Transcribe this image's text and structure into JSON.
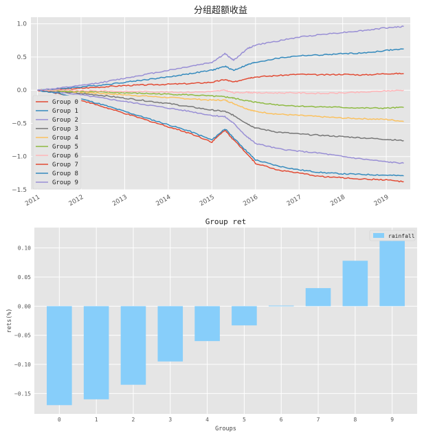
{
  "chart_data": [
    {
      "type": "line",
      "title": "分组超额收益",
      "xlabel": "",
      "ylabel": "",
      "x_ticks": [
        "2011",
        "2012",
        "2013",
        "2014",
        "2015",
        "2016",
        "2017",
        "2018",
        "2019"
      ],
      "x_range": [
        2010.85,
        2019.55
      ],
      "y_ticks": [
        "1.0",
        "0.5",
        "0.0",
        "−0.5",
        "−1.0",
        "−1.5"
      ],
      "ylim": [
        -1.5,
        1.1
      ],
      "grid": true,
      "legend_position": "center-left",
      "series": [
        {
          "name": "Group 0",
          "color": "#E24A33",
          "x": [
            2011.0,
            2011.5,
            2012.0,
            2012.5,
            2013.0,
            2013.5,
            2014.0,
            2014.5,
            2015.0,
            2015.3,
            2015.5,
            2015.8,
            2016.0,
            2016.5,
            2017.0,
            2017.5,
            2018.0,
            2018.5,
            2019.0,
            2019.4
          ],
          "y": [
            0.0,
            0.01,
            0.03,
            0.05,
            0.07,
            0.08,
            0.09,
            0.1,
            0.12,
            0.16,
            0.12,
            0.18,
            0.2,
            0.22,
            0.24,
            0.23,
            0.24,
            0.23,
            0.25,
            0.25
          ]
        },
        {
          "name": "Group 1",
          "color": "#348ABD",
          "x": [
            2011.0,
            2011.5,
            2012.0,
            2012.5,
            2013.0,
            2013.5,
            2014.0,
            2014.5,
            2015.0,
            2015.3,
            2015.5,
            2015.8,
            2016.0,
            2016.5,
            2017.0,
            2017.5,
            2018.0,
            2018.5,
            2019.0,
            2019.4
          ],
          "y": [
            0.0,
            0.02,
            0.05,
            0.08,
            0.12,
            0.16,
            0.2,
            0.25,
            0.3,
            0.36,
            0.3,
            0.38,
            0.42,
            0.48,
            0.52,
            0.53,
            0.55,
            0.56,
            0.6,
            0.62
          ]
        },
        {
          "name": "Group 2",
          "color": "#988ED5",
          "x": [
            2011.0,
            2011.5,
            2012.0,
            2012.5,
            2013.0,
            2013.5,
            2014.0,
            2014.5,
            2015.0,
            2015.3,
            2015.5,
            2015.8,
            2016.0,
            2016.5,
            2017.0,
            2017.5,
            2018.0,
            2018.5,
            2019.0,
            2019.4
          ],
          "y": [
            0.0,
            -0.03,
            -0.07,
            -0.12,
            -0.17,
            -0.22,
            -0.27,
            -0.32,
            -0.38,
            -0.4,
            -0.5,
            -0.7,
            -0.8,
            -0.88,
            -0.92,
            -0.95,
            -1.0,
            -1.04,
            -1.08,
            -1.1
          ]
        },
        {
          "name": "Group 3",
          "color": "#777777",
          "x": [
            2011.0,
            2011.5,
            2012.0,
            2012.5,
            2013.0,
            2013.5,
            2014.0,
            2014.5,
            2015.0,
            2015.3,
            2015.5,
            2015.8,
            2016.0,
            2016.5,
            2017.0,
            2017.5,
            2018.0,
            2018.5,
            2019.0,
            2019.4
          ],
          "y": [
            0.0,
            -0.02,
            -0.05,
            -0.08,
            -0.12,
            -0.16,
            -0.2,
            -0.25,
            -0.3,
            -0.32,
            -0.38,
            -0.5,
            -0.57,
            -0.63,
            -0.66,
            -0.68,
            -0.7,
            -0.72,
            -0.74,
            -0.76
          ]
        },
        {
          "name": "Group 4",
          "color": "#FBC15E",
          "x": [
            2011.0,
            2011.5,
            2012.0,
            2012.5,
            2013.0,
            2013.5,
            2014.0,
            2014.5,
            2015.0,
            2015.3,
            2015.5,
            2015.8,
            2016.0,
            2016.5,
            2017.0,
            2017.5,
            2018.0,
            2018.5,
            2019.0,
            2019.4
          ],
          "y": [
            0.0,
            -0.01,
            -0.03,
            -0.05,
            -0.07,
            -0.09,
            -0.11,
            -0.13,
            -0.15,
            -0.15,
            -0.2,
            -0.28,
            -0.32,
            -0.36,
            -0.38,
            -0.4,
            -0.42,
            -0.43,
            -0.44,
            -0.47
          ]
        },
        {
          "name": "Group 5",
          "color": "#8EBA42",
          "x": [
            2011.0,
            2011.5,
            2012.0,
            2012.5,
            2013.0,
            2013.5,
            2014.0,
            2014.5,
            2015.0,
            2015.3,
            2015.5,
            2015.8,
            2016.0,
            2016.5,
            2017.0,
            2017.5,
            2018.0,
            2018.5,
            2019.0,
            2019.4
          ],
          "y": [
            0.0,
            -0.01,
            -0.02,
            -0.03,
            -0.04,
            -0.05,
            -0.06,
            -0.07,
            -0.09,
            -0.1,
            -0.12,
            -0.16,
            -0.18,
            -0.22,
            -0.24,
            -0.25,
            -0.26,
            -0.27,
            -0.27,
            -0.26
          ]
        },
        {
          "name": "Group 6",
          "color": "#FFB5B8",
          "x": [
            2011.0,
            2011.5,
            2012.0,
            2012.5,
            2013.0,
            2013.5,
            2014.0,
            2014.5,
            2015.0,
            2015.3,
            2015.5,
            2015.8,
            2016.0,
            2016.5,
            2017.0,
            2017.5,
            2018.0,
            2018.5,
            2019.0,
            2019.4
          ],
          "y": [
            0.0,
            0.0,
            -0.01,
            -0.01,
            -0.02,
            -0.02,
            -0.03,
            -0.03,
            -0.02,
            0.0,
            -0.04,
            -0.03,
            -0.04,
            -0.04,
            -0.04,
            -0.05,
            -0.04,
            -0.03,
            -0.01,
            0.0
          ]
        },
        {
          "name": "Group 7",
          "color": "#E24A33",
          "x": [
            2011.0,
            2011.5,
            2012.0,
            2012.5,
            2013.0,
            2013.5,
            2014.0,
            2014.5,
            2015.0,
            2015.3,
            2015.5,
            2015.8,
            2016.0,
            2016.5,
            2017.0,
            2017.5,
            2018.0,
            2018.5,
            2019.0,
            2019.4
          ],
          "y": [
            0.0,
            -0.05,
            -0.15,
            -0.25,
            -0.35,
            -0.45,
            -0.55,
            -0.65,
            -0.78,
            -0.6,
            -0.75,
            -0.95,
            -1.1,
            -1.2,
            -1.25,
            -1.3,
            -1.32,
            -1.34,
            -1.35,
            -1.38
          ]
        },
        {
          "name": "Group 8",
          "color": "#348ABD",
          "x": [
            2011.0,
            2011.5,
            2012.0,
            2012.5,
            2013.0,
            2013.5,
            2014.0,
            2014.5,
            2015.0,
            2015.3,
            2015.5,
            2015.8,
            2016.0,
            2016.5,
            2017.0,
            2017.5,
            2018.0,
            2018.5,
            2019.0,
            2019.4
          ],
          "y": [
            0.0,
            -0.05,
            -0.13,
            -0.22,
            -0.32,
            -0.42,
            -0.52,
            -0.62,
            -0.75,
            -0.58,
            -0.72,
            -0.92,
            -1.05,
            -1.14,
            -1.2,
            -1.24,
            -1.26,
            -1.27,
            -1.28,
            -1.29
          ]
        },
        {
          "name": "Group 9",
          "color": "#988ED5",
          "x": [
            2011.0,
            2011.5,
            2012.0,
            2012.5,
            2013.0,
            2013.5,
            2014.0,
            2014.5,
            2015.0,
            2015.3,
            2015.5,
            2015.8,
            2016.0,
            2016.5,
            2017.0,
            2017.5,
            2018.0,
            2018.5,
            2019.0,
            2019.4
          ],
          "y": [
            0.0,
            0.03,
            0.07,
            0.12,
            0.18,
            0.24,
            0.3,
            0.36,
            0.42,
            0.55,
            0.45,
            0.62,
            0.68,
            0.74,
            0.8,
            0.84,
            0.87,
            0.9,
            0.94,
            0.96
          ]
        }
      ]
    },
    {
      "type": "bar",
      "title": "Group ret",
      "xlabel": "Groups",
      "ylabel": "rets(%)",
      "categories": [
        "0",
        "1",
        "2",
        "3",
        "4",
        "5",
        "6",
        "7",
        "8",
        "9"
      ],
      "values": [
        -0.17,
        -0.16,
        -0.135,
        -0.095,
        -0.06,
        -0.033,
        0.001,
        0.031,
        0.078,
        0.112
      ],
      "ylim": [
        -0.185,
        0.135
      ],
      "y_ticks": [
        "0.10",
        "0.05",
        "0.00",
        "−0.05",
        "−0.10",
        "−0.15"
      ],
      "grid": true,
      "legend_position": "top-right",
      "series": [
        {
          "name": "rainfall",
          "color": "#87CEFA"
        }
      ]
    }
  ],
  "colors": {
    "panel_background": "#E5E5E5",
    "grid": "#FFFFFF"
  }
}
